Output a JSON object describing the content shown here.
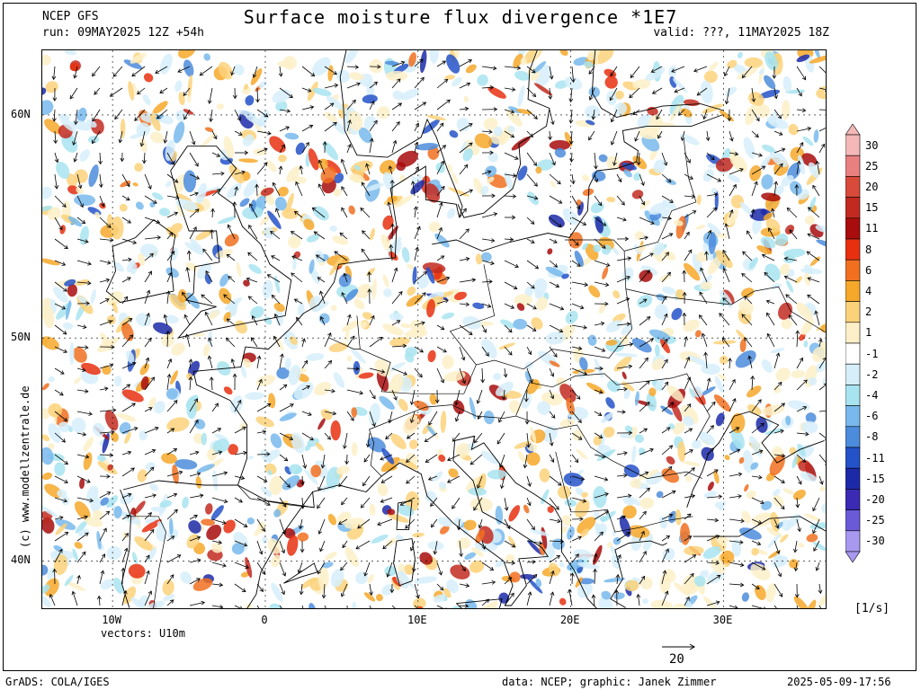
{
  "header": {
    "model": "NCEP GFS",
    "run": "run: 09MAY2025 12Z +54h",
    "title": "Surface moisture flux divergence *1E7",
    "valid": "valid: ???, 11MAY2025 18Z"
  },
  "map": {
    "lon_labels": [
      "10W",
      "0",
      "10E",
      "20E",
      "30E"
    ],
    "lat_labels": [
      "60N",
      "50N",
      "40N"
    ],
    "lon_values": [
      -10,
      0,
      10,
      20,
      30
    ],
    "lat_values": [
      60,
      50,
      40
    ],
    "lon_range": [
      -14.6,
      36.8
    ],
    "lat_range": [
      37.8,
      62.9
    ],
    "field": "Surface moisture flux divergence",
    "scale_factor": "1E7",
    "vector_label": "vectors: U10m",
    "reference_vector": "20",
    "credit": "(c) www.modellzentrale.de"
  },
  "colorbar": {
    "unit": "[1/s]",
    "levels": [
      "30",
      "25",
      "20",
      "15",
      "11",
      "8",
      "6",
      "4",
      "2",
      "1",
      "-1",
      "-2",
      "-4",
      "-6",
      "-8",
      "-11",
      "-15",
      "-20",
      "-25",
      "-30"
    ],
    "colors": [
      "#f4b8b8",
      "#e88080",
      "#d84a3a",
      "#c22a20",
      "#a80c0c",
      "#e83010",
      "#f07020",
      "#f6a82a",
      "#fbd27a",
      "#fdf0c8",
      "#ffffff",
      "#d6eefa",
      "#a8e4f0",
      "#78b8ec",
      "#4c8cdc",
      "#2452c8",
      "#1c2aa8",
      "#3a2ab4",
      "#6a5ad8",
      "#a898f0"
    ]
  },
  "footer": {
    "left": "GrADS: COLA/IGES",
    "center": "data: NCEP; graphic: Janek Zimmer",
    "right": "2025-05-09-17:56"
  }
}
